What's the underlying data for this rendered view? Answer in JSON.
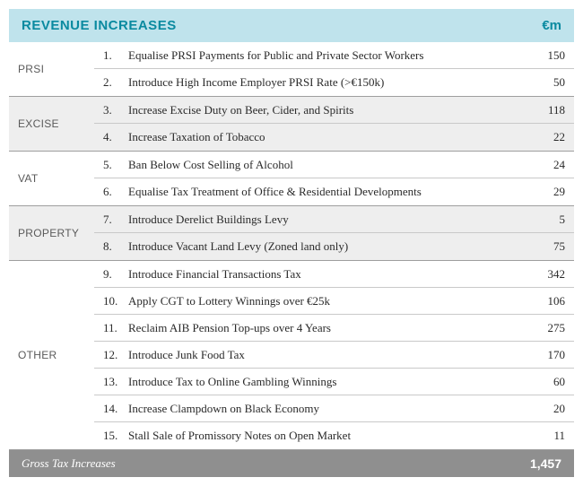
{
  "header": {
    "title": "REVENUE INCREASES",
    "unit": "€m"
  },
  "sections": [
    {
      "label": "PRSI",
      "items": [
        {
          "num": "1.",
          "desc": "Equalise PRSI Payments for Public and Private Sector Workers",
          "val": "150",
          "alt": false
        },
        {
          "num": "2.",
          "desc": "Introduce High Income Employer PRSI Rate (>€150k)",
          "val": "50",
          "alt": false
        }
      ]
    },
    {
      "label": "EXCISE",
      "items": [
        {
          "num": "3.",
          "desc": "Increase Excise Duty on Beer, Cider, and Spirits",
          "val": "118",
          "alt": true
        },
        {
          "num": "4.",
          "desc": "Increase Taxation of Tobacco",
          "val": "22",
          "alt": true
        }
      ]
    },
    {
      "label": "VAT",
      "items": [
        {
          "num": "5.",
          "desc": "Ban Below Cost Selling of Alcohol",
          "val": "24",
          "alt": false
        },
        {
          "num": "6.",
          "desc": "Equalise Tax Treatment of Office & Residential Developments",
          "val": "29",
          "alt": false
        }
      ]
    },
    {
      "label": "PROPERTY",
      "items": [
        {
          "num": "7.",
          "desc": "Introduce Derelict Buildings Levy",
          "val": "5",
          "alt": true
        },
        {
          "num": "8.",
          "desc": "Introduce Vacant Land Levy (Zoned land only)",
          "val": "75",
          "alt": true
        }
      ]
    },
    {
      "label": "OTHER",
      "items": [
        {
          "num": "9.",
          "desc": "Introduce Financial Transactions Tax",
          "val": "342",
          "alt": false
        },
        {
          "num": "10.",
          "desc": "Apply CGT to Lottery Winnings over €25k",
          "val": "106",
          "alt": false
        },
        {
          "num": "11.",
          "desc": "Reclaim AIB Pension Top-ups over 4 Years",
          "val": "275",
          "alt": false
        },
        {
          "num": "12.",
          "desc": "Introduce Junk Food Tax",
          "val": "170",
          "alt": false
        },
        {
          "num": "13.",
          "desc": "Introduce Tax to Online Gambling Winnings",
          "val": "60",
          "alt": false
        },
        {
          "num": "14.",
          "desc": "Increase Clampdown on Black Economy",
          "val": "20",
          "alt": false
        },
        {
          "num": "15.",
          "desc": "Stall Sale of Promissory Notes on Open Market",
          "val": "11",
          "alt": false
        }
      ]
    }
  ],
  "footer": {
    "label": "Gross Tax Increases",
    "value": "1,457"
  },
  "style": {
    "header_bg": "#bfe3ec",
    "header_text": "#0a8aa0",
    "row_alt_bg": "#eeeeee",
    "border_color": "#c9c9c9",
    "section_border": "#9e9e9e",
    "footer_bg": "#8f8f8f",
    "footer_text": "#ffffff",
    "body_text": "#2a2a2a",
    "label_text": "#5a5a5a",
    "title_fontsize": 15,
    "body_fontsize": 13,
    "label_fontsize": 12
  }
}
